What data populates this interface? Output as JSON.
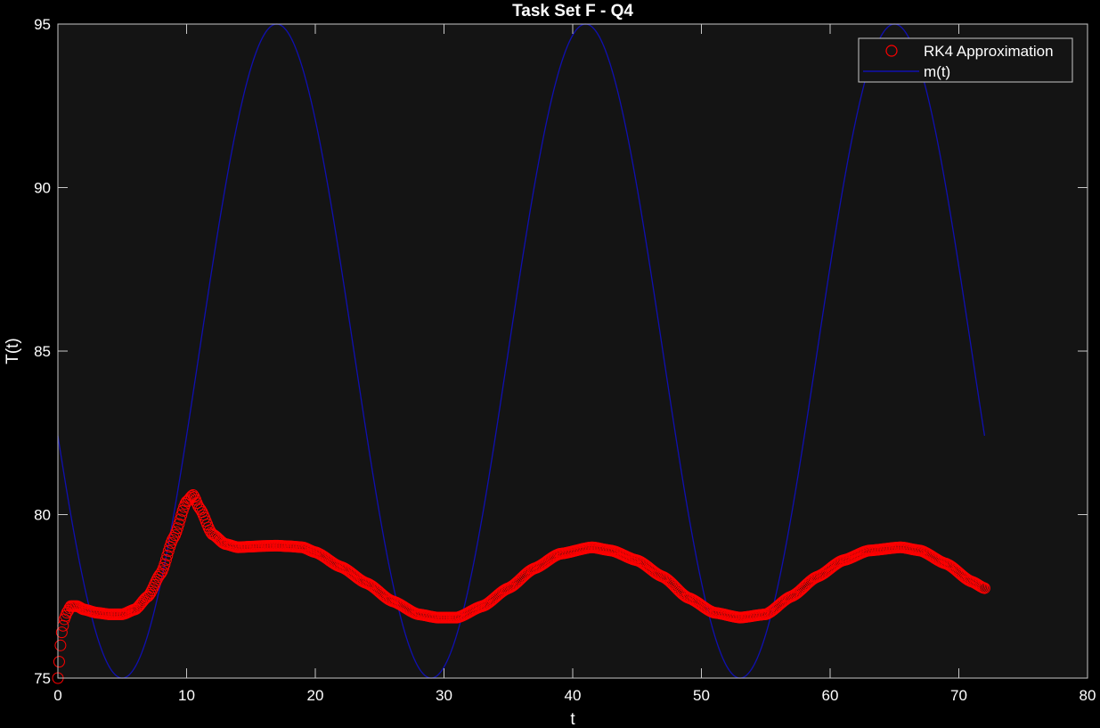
{
  "chart_data": {
    "type": "line",
    "title": "Task Set F - Q4",
    "xlabel": "t",
    "ylabel": "T(t)",
    "xlim": [
      0,
      80
    ],
    "ylim": [
      75,
      95
    ],
    "x_ticks": [
      0,
      10,
      20,
      30,
      40,
      50,
      60,
      70,
      80
    ],
    "y_ticks": [
      75,
      80,
      85,
      90,
      95
    ],
    "grid": false,
    "legend_position": "top-right",
    "colors": {
      "background": "#000000",
      "axes_background": "#141414",
      "axis": "#c8c8c8",
      "text": "#ffffff"
    },
    "series": [
      {
        "name": "RK4 Approximation",
        "style": "markers-circle",
        "color": "#ff0000",
        "x": [
          0,
          0.1,
          0.2,
          0.3,
          0.5,
          0.7,
          1.0,
          1.5,
          2.0,
          3.0,
          4.0,
          5.0,
          6.0,
          7.0,
          8.0,
          9.0,
          10.0,
          10.5,
          11.0,
          12.0,
          13.0,
          14.0,
          15.0,
          16.0,
          17.0,
          18.0,
          19.0,
          20.0,
          22.0,
          24.0,
          26.0,
          28.0,
          29.5,
          31.0,
          33.0,
          35.0,
          37.0,
          39.0,
          41.5,
          43.0,
          45.0,
          47.0,
          49.0,
          51.0,
          53.0,
          55.0,
          57.0,
          59.0,
          61.0,
          63.0,
          65.5,
          67.0,
          69.0,
          71.0,
          72.0
        ],
        "y": [
          75.0,
          75.5,
          76.0,
          76.4,
          76.8,
          77.0,
          77.2,
          77.2,
          77.1,
          77.0,
          76.95,
          76.95,
          77.1,
          77.5,
          78.2,
          79.3,
          80.4,
          80.6,
          80.2,
          79.4,
          79.1,
          79.0,
          79.02,
          79.04,
          79.05,
          79.03,
          79.0,
          78.85,
          78.4,
          77.9,
          77.35,
          76.95,
          76.85,
          76.85,
          77.2,
          77.75,
          78.35,
          78.8,
          79.0,
          78.9,
          78.6,
          78.1,
          77.45,
          77.0,
          76.85,
          76.95,
          77.5,
          78.1,
          78.6,
          78.9,
          79.0,
          78.9,
          78.5,
          77.95,
          77.75
        ]
      },
      {
        "name": "m(t)",
        "style": "line",
        "color": "#1010b0",
        "model": {
          "function": "85 + 10*sin(2*pi*(t - 11)/24)",
          "t_range": [
            0,
            72
          ]
        }
      }
    ]
  }
}
